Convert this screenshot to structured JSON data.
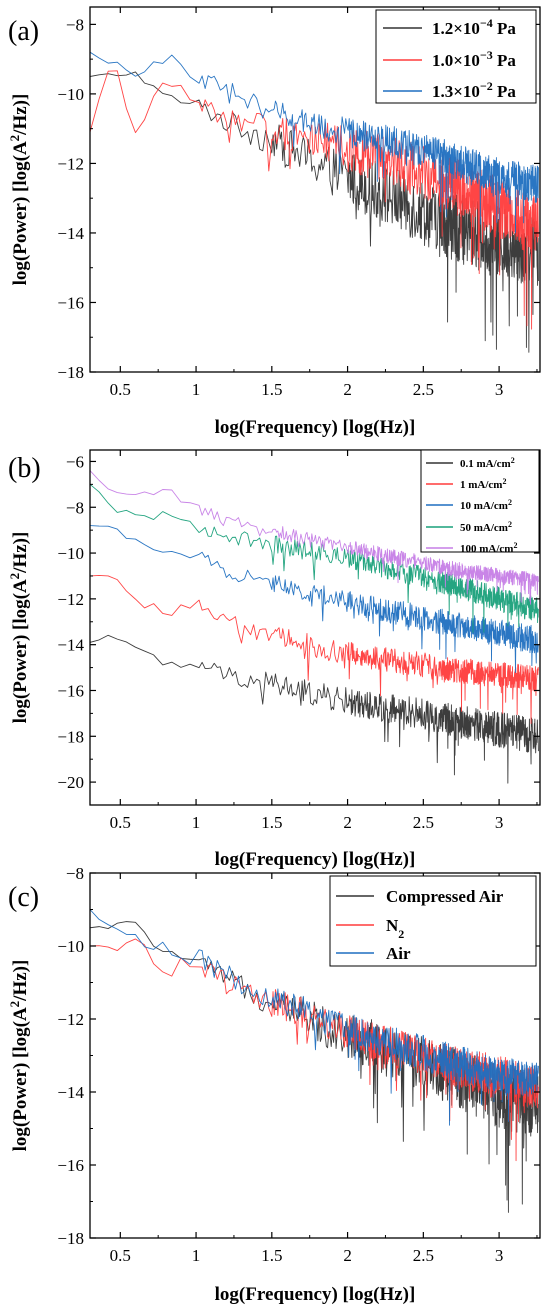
{
  "chart_data": [
    {
      "type": "line",
      "panel_label": "(a)",
      "xlabel": "log(Frequency) [log(Hz)]",
      "ylabel": "log(Power) [log(A²/Hz)]",
      "ylabel_parts": {
        "base": "log(Power) [log(A",
        "sup": "2",
        "tail": "/Hz)]"
      },
      "xlim": [
        0.3,
        3.27
      ],
      "ylim": [
        -18,
        -7.5
      ],
      "xticks": [
        0.5,
        1,
        1.5,
        2,
        2.5,
        3
      ],
      "xtick_labels": [
        "0.5",
        "1",
        "1.5",
        "2",
        "2.5",
        "3"
      ],
      "yticks": [
        -18,
        -16,
        -14,
        -12,
        -10,
        -8
      ],
      "ytick_labels": [
        "−18",
        "−16",
        "−14",
        "−12",
        "−10",
        "−8"
      ],
      "grid": false,
      "legend_position": "top-right",
      "series": [
        {
          "name": "1.2×10⁻⁴ Pa",
          "name_parts": {
            "base": "1.2×10",
            "sup": "−4",
            "tail": " Pa"
          },
          "color": "#333333",
          "x": [
            0.3,
            0.6,
            0.8,
            1.0,
            1.2,
            1.5,
            1.8,
            2.1,
            2.4,
            2.7,
            3.0,
            3.25
          ],
          "y": [
            -9.5,
            -9.4,
            -10.1,
            -10.3,
            -10.8,
            -11.3,
            -12.0,
            -12.6,
            -13.2,
            -13.8,
            -14.3,
            -14.5
          ],
          "noise": [
            0.1,
            0.15,
            0.2,
            0.4,
            0.6,
            0.9,
            1.2,
            1.5,
            1.7,
            1.8,
            1.9,
            1.9
          ]
        },
        {
          "name": "1.0×10⁻³ Pa",
          "name_parts": {
            "base": "1.0×10",
            "sup": "−3",
            "tail": " Pa"
          },
          "color": "#ff3b3b",
          "x": [
            0.3,
            0.45,
            0.6,
            0.8,
            1.0,
            1.2,
            1.5,
            1.8,
            2.1,
            2.4,
            2.7,
            3.0,
            3.25
          ],
          "y": [
            -11.1,
            -8.9,
            -11.2,
            -9.5,
            -10.2,
            -10.8,
            -11.0,
            -11.3,
            -11.7,
            -12.1,
            -12.6,
            -13.3,
            -13.8
          ],
          "noise": [
            0.1,
            0.2,
            0.3,
            0.3,
            0.4,
            0.6,
            0.8,
            1.0,
            1.2,
            1.4,
            1.5,
            1.6,
            1.6
          ]
        },
        {
          "name": "1.3×10⁻² Pa",
          "name_parts": {
            "base": "1.3×10",
            "sup": "−2",
            "tail": " Pa"
          },
          "color": "#1f6fc0",
          "x": [
            0.3,
            0.45,
            0.6,
            0.85,
            1.0,
            1.2,
            1.5,
            1.8,
            2.1,
            2.4,
            2.7,
            3.0,
            3.25
          ],
          "y": [
            -8.8,
            -9.1,
            -9.6,
            -8.8,
            -9.5,
            -9.9,
            -10.5,
            -10.9,
            -11.2,
            -11.5,
            -11.9,
            -12.4,
            -12.6
          ],
          "noise": [
            0.1,
            0.2,
            0.3,
            0.3,
            0.4,
            0.5,
            0.6,
            0.7,
            0.8,
            0.9,
            1.0,
            1.0,
            1.0
          ]
        }
      ]
    },
    {
      "type": "line",
      "panel_label": "(b)",
      "xlabel": "log(Frequency) [log(Hz)]",
      "ylabel": "log(Power) [log(A²/Hz)]",
      "ylabel_parts": {
        "base": "log(Power) [log(A",
        "sup": "2",
        "tail": "/Hz)]"
      },
      "xlim": [
        0.3,
        3.27
      ],
      "ylim": [
        -21,
        -5.5
      ],
      "xticks": [
        0.5,
        1,
        1.5,
        2,
        2.5,
        3
      ],
      "xtick_labels": [
        "0.5",
        "1",
        "1.5",
        "2",
        "2.5",
        "3"
      ],
      "yticks": [
        -20,
        -18,
        -16,
        -14,
        -12,
        -10,
        -8,
        -6
      ],
      "ytick_labels": [
        "−20",
        "−18",
        "−16",
        "−14",
        "−12",
        "−10",
        "−8",
        "−6"
      ],
      "grid": false,
      "legend_position": "top-right",
      "series": [
        {
          "name": "0.1 mA/cm²",
          "name_parts": {
            "base": "0.1 mA/cm",
            "sup": "2",
            "tail": ""
          },
          "color": "#333333",
          "x": [
            0.3,
            0.45,
            0.6,
            0.8,
            1.0,
            1.2,
            1.5,
            1.8,
            2.1,
            2.4,
            2.7,
            3.0,
            3.25
          ],
          "y": [
            -13.9,
            -13.5,
            -14.2,
            -15.0,
            -14.8,
            -15.3,
            -15.7,
            -16.2,
            -16.6,
            -16.9,
            -17.3,
            -17.7,
            -18.0
          ],
          "noise": [
            0.1,
            0.2,
            0.4,
            0.6,
            0.6,
            0.7,
            0.9,
            1.0,
            1.1,
            1.2,
            1.3,
            1.4,
            1.4
          ]
        },
        {
          "name": "1 mA/cm²",
          "name_parts": {
            "base": "1 mA/cm",
            "sup": "2",
            "tail": ""
          },
          "color": "#ff3b3b",
          "x": [
            0.3,
            0.45,
            0.6,
            0.8,
            1.0,
            1.2,
            1.5,
            1.8,
            2.1,
            2.4,
            2.7,
            3.0,
            3.25
          ],
          "y": [
            -11.0,
            -10.9,
            -12.1,
            -12.6,
            -12.2,
            -13.0,
            -13.6,
            -14.1,
            -14.5,
            -14.8,
            -15.1,
            -15.3,
            -15.5
          ],
          "noise": [
            0.1,
            0.2,
            0.3,
            0.4,
            0.5,
            0.6,
            0.8,
            0.9,
            0.9,
            1.0,
            1.0,
            1.0,
            1.0
          ]
        },
        {
          "name": "10 mA/cm²",
          "name_parts": {
            "base": "10 mA/cm",
            "sup": "2",
            "tail": ""
          },
          "color": "#1f6fc0",
          "x": [
            0.3,
            0.45,
            0.6,
            0.8,
            1.0,
            1.2,
            1.5,
            1.8,
            2.1,
            2.4,
            2.7,
            3.0,
            3.25
          ],
          "y": [
            -8.8,
            -8.9,
            -9.5,
            -9.8,
            -10.0,
            -10.8,
            -11.3,
            -11.8,
            -12.3,
            -12.7,
            -13.1,
            -13.5,
            -13.8
          ],
          "noise": [
            0.1,
            0.2,
            0.3,
            0.4,
            0.5,
            0.6,
            0.7,
            0.8,
            0.9,
            1.0,
            1.0,
            1.1,
            1.1
          ]
        },
        {
          "name": "50 mA/cm²",
          "name_parts": {
            "base": "50 mA/cm",
            "sup": "2",
            "tail": ""
          },
          "color": "#19a07a",
          "x": [
            0.3,
            0.45,
            0.6,
            0.8,
            1.0,
            1.2,
            1.5,
            1.8,
            2.1,
            2.4,
            2.7,
            3.0,
            3.25
          ],
          "y": [
            -7.0,
            -8.0,
            -8.5,
            -8.3,
            -8.9,
            -9.2,
            -9.6,
            -10.0,
            -10.4,
            -10.9,
            -11.4,
            -12.0,
            -12.5
          ],
          "noise": [
            0.1,
            0.3,
            0.4,
            0.4,
            0.5,
            0.6,
            0.7,
            0.8,
            0.8,
            0.9,
            0.9,
            1.0,
            1.0
          ]
        },
        {
          "name": "100 mA/cm²",
          "name_parts": {
            "base": "100 mA/cm",
            "sup": "2",
            "tail": ""
          },
          "color": "#c67ee6",
          "x": [
            0.3,
            0.45,
            0.6,
            0.8,
            1.0,
            1.2,
            1.5,
            1.8,
            2.1,
            2.4,
            2.7,
            3.0,
            3.25
          ],
          "y": [
            -6.4,
            -7.3,
            -7.6,
            -7.2,
            -8.0,
            -8.6,
            -9.0,
            -9.5,
            -9.9,
            -10.3,
            -10.7,
            -11.0,
            -11.2
          ],
          "noise": [
            0.1,
            0.2,
            0.3,
            0.3,
            0.4,
            0.5,
            0.5,
            0.6,
            0.6,
            0.6,
            0.6,
            0.6,
            0.6
          ]
        }
      ]
    },
    {
      "type": "line",
      "panel_label": "(c)",
      "xlabel": "log(Frequency) [log(Hz)]",
      "ylabel": "log(Power) [log(A²/Hz)]",
      "ylabel_parts": {
        "base": "log(Power) [log(A",
        "sup": "2",
        "tail": "/Hz)]"
      },
      "xlim": [
        0.3,
        3.27
      ],
      "ylim": [
        -18,
        -8
      ],
      "xticks": [
        0.5,
        1,
        1.5,
        2,
        2.5,
        3
      ],
      "xtick_labels": [
        "0.5",
        "1",
        "1.5",
        "2",
        "2.5",
        "3"
      ],
      "yticks": [
        -18,
        -16,
        -14,
        -12,
        -10,
        -8
      ],
      "ytick_labels": [
        "−18",
        "−16",
        "−14",
        "−12",
        "−10",
        "−8"
      ],
      "grid": false,
      "legend_position": "top-right",
      "series": [
        {
          "name": "Compressed Air",
          "name_parts": {
            "base": "Compressed Air",
            "sup": "",
            "tail": ""
          },
          "color": "#333333",
          "x": [
            0.3,
            0.6,
            0.8,
            1.0,
            1.2,
            1.5,
            1.8,
            2.1,
            2.4,
            2.7,
            3.0,
            3.25
          ],
          "y": [
            -9.5,
            -9.4,
            -10.2,
            -10.4,
            -10.9,
            -11.5,
            -12.1,
            -12.6,
            -13.1,
            -13.6,
            -14.1,
            -14.4
          ],
          "noise": [
            0.1,
            0.2,
            0.3,
            0.4,
            0.5,
            0.8,
            1.0,
            1.2,
            1.4,
            1.5,
            1.6,
            1.6
          ]
        },
        {
          "name": "N₂",
          "name_parts": {
            "base": "N",
            "sub": "2",
            "tail": ""
          },
          "color": "#ff3b3b",
          "x": [
            0.3,
            0.45,
            0.6,
            0.8,
            1.0,
            1.2,
            1.5,
            1.8,
            2.1,
            2.4,
            2.7,
            3.0,
            3.25
          ],
          "y": [
            -10.0,
            -10.1,
            -9.9,
            -10.6,
            -10.4,
            -11.0,
            -11.5,
            -12.0,
            -12.5,
            -12.9,
            -13.3,
            -13.6,
            -13.9
          ],
          "noise": [
            0.1,
            0.2,
            0.3,
            0.5,
            0.5,
            0.6,
            0.7,
            0.8,
            0.9,
            1.0,
            1.0,
            1.1,
            1.1
          ]
        },
        {
          "name": "Air",
          "name_parts": {
            "base": "Air",
            "sup": "",
            "tail": ""
          },
          "color": "#1f6fc0",
          "x": [
            0.3,
            0.45,
            0.6,
            0.8,
            1.0,
            1.2,
            1.5,
            1.8,
            2.1,
            2.4,
            2.7,
            3.0,
            3.25
          ],
          "y": [
            -9.0,
            -9.5,
            -9.8,
            -10.1,
            -10.3,
            -10.8,
            -11.4,
            -11.9,
            -12.4,
            -12.8,
            -13.2,
            -13.5,
            -13.7
          ],
          "noise": [
            0.1,
            0.2,
            0.3,
            0.4,
            0.5,
            0.6,
            0.7,
            0.8,
            0.8,
            0.9,
            0.9,
            0.9,
            0.9
          ]
        }
      ]
    }
  ]
}
